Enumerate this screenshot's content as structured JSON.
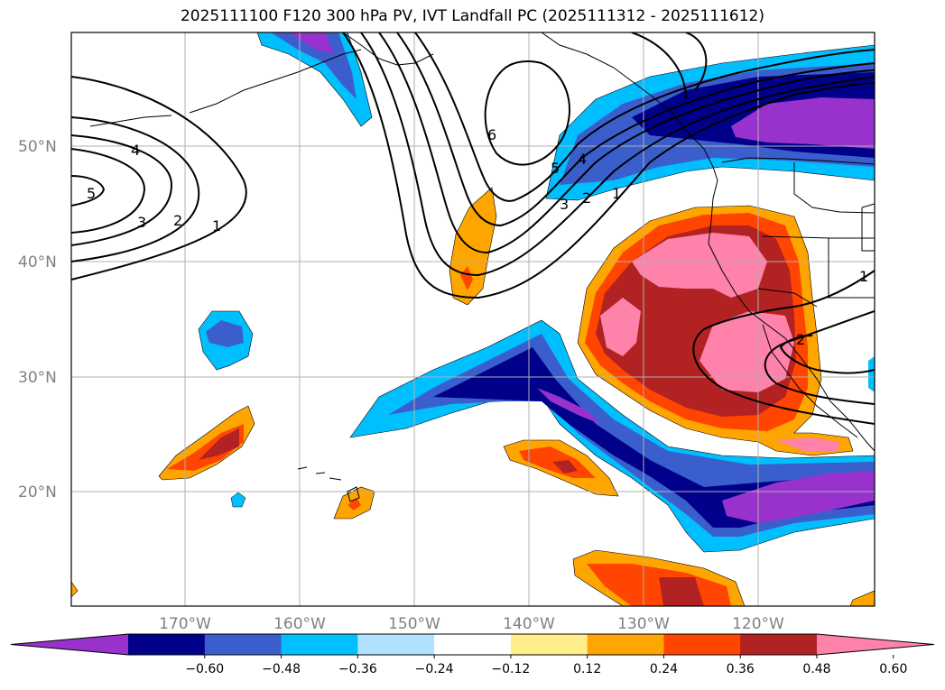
{
  "title": "2025111100 F120 300 hPa PV, IVT Landfall PC (2025111312 - 2025111612)",
  "map": {
    "lat_labels": [
      "50°N",
      "40°N",
      "30°N",
      "20°N"
    ],
    "lon_labels": [
      "170°W",
      "160°W",
      "150°W",
      "140°W",
      "130°W",
      "120°W"
    ],
    "lat_range": [
      10,
      60
    ],
    "lon_range": [
      -180,
      -110
    ],
    "grid": true
  },
  "colorbar": {
    "ticks": [
      "−0.60",
      "−0.48",
      "−0.36",
      "−0.24",
      "−0.12",
      "0.12",
      "0.24",
      "0.36",
      "0.48",
      "0.60"
    ],
    "colors": [
      "#9932cc",
      "#00008b",
      "#3a5fcd",
      "#00bfff",
      "#b0e2ff",
      "#ffffff",
      "#ffec8b",
      "#ffa500",
      "#ff4500",
      "#b22222",
      "#ff82ab"
    ],
    "extend": "both"
  },
  "contours": {
    "labels": [
      "5",
      "4",
      "3",
      "2",
      "1",
      "6",
      "5",
      "4",
      "3",
      "2",
      "1",
      "1",
      "2"
    ]
  }
}
